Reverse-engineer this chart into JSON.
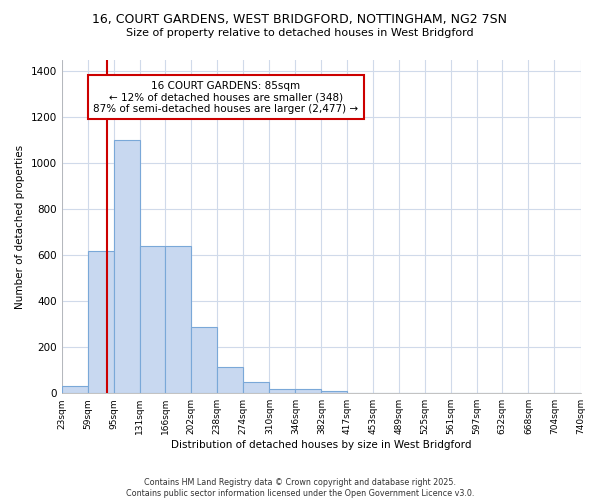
{
  "title1": "16, COURT GARDENS, WEST BRIDGFORD, NOTTINGHAM, NG2 7SN",
  "title2": "Size of property relative to detached houses in West Bridgford",
  "xlabel": "Distribution of detached houses by size in West Bridgford",
  "ylabel": "Number of detached properties",
  "bin_edges": [
    23,
    59,
    95,
    131,
    166,
    202,
    238,
    274,
    310,
    346,
    382,
    417,
    453,
    489,
    525,
    561,
    597,
    632,
    668,
    704,
    740
  ],
  "bin_labels": [
    "23sqm",
    "59sqm",
    "95sqm",
    "131sqm",
    "166sqm",
    "202sqm",
    "238sqm",
    "274sqm",
    "310sqm",
    "346sqm",
    "382sqm",
    "417sqm",
    "453sqm",
    "489sqm",
    "525sqm",
    "561sqm",
    "597sqm",
    "632sqm",
    "668sqm",
    "704sqm",
    "740sqm"
  ],
  "counts": [
    30,
    620,
    1100,
    640,
    640,
    290,
    115,
    50,
    20,
    20,
    10,
    0,
    0,
    0,
    0,
    0,
    0,
    0,
    0,
    0
  ],
  "bar_color": "#c8d8f0",
  "bar_edge_color": "#7aa8d8",
  "property_size": 85,
  "vline_color": "#cc0000",
  "annotation_line1": "16 COURT GARDENS: 85sqm",
  "annotation_line2": "← 12% of detached houses are smaller (348)",
  "annotation_line3": "87% of semi-detached houses are larger (2,477) →",
  "annotation_box_color": "#ffffff",
  "annotation_box_edge": "#cc0000",
  "ylim": [
    0,
    1450
  ],
  "bg_color": "#ffffff",
  "plot_bg_color": "#ffffff",
  "grid_color": "#d0daea",
  "footnote": "Contains HM Land Registry data © Crown copyright and database right 2025.\nContains public sector information licensed under the Open Government Licence v3.0."
}
